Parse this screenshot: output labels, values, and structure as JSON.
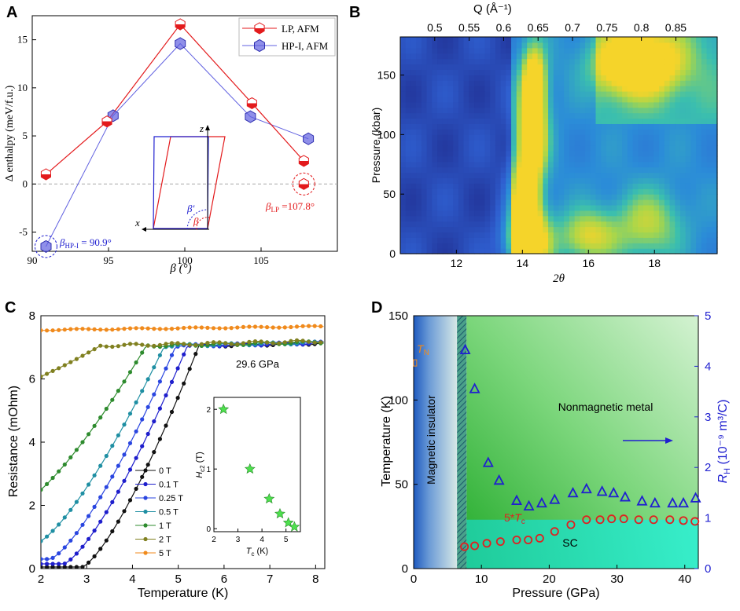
{
  "panels": {
    "A": {
      "label": "A",
      "chart_data": {
        "type": "line",
        "xlabel": "β (°)",
        "ylabel": "Δ enthalpy (meV/f.u.)",
        "xlim": [
          90,
          110
        ],
        "ylim": [
          -7,
          17.5
        ],
        "xticks": [
          90,
          95,
          100,
          105
        ],
        "yticks": [
          -5,
          0,
          5,
          10,
          15
        ],
        "reference_line": 0,
        "series": [
          {
            "name": "LP, AFM",
            "color": "#e31a1c",
            "x": [
              90.9,
              94.9,
              99.7,
              104.4,
              107.8,
              107.8
            ],
            "y": [
              1.0,
              6.5,
              16.6,
              8.4,
              2.4,
              0.0
            ]
          },
          {
            "name": "HP-I, AFM",
            "color": "#6060e0",
            "x": [
              90.9,
              95.3,
              99.7,
              104.3,
              108.1
            ],
            "y": [
              -6.5,
              7.1,
              14.6,
              7.0,
              4.7
            ]
          }
        ],
        "annotations": {
          "hp_beta": "β",
          "hp_sub": "HP-I",
          "hp_val": " = 90.9°",
          "lp_beta": "β",
          "lp_sub": "LP",
          "lp_val": " =107.8°"
        },
        "inset_labels": {
          "z": "z",
          "x": "x",
          "beta_prime": "β′",
          "beta": "β"
        }
      }
    },
    "B": {
      "label": "B",
      "chart_data": {
        "type": "heatmap",
        "xlabel": "2θ",
        "ylabel": "Pressure (kbar)",
        "top_label": "Q (Å⁻¹)",
        "xlim": [
          10.3,
          19.9
        ],
        "ylim": [
          0,
          182
        ],
        "xticks": [
          12,
          14,
          16,
          18
        ],
        "yticks": [
          0,
          50,
          100,
          150
        ],
        "top_xlim": [
          0.45,
          0.91
        ],
        "top_ticks": [
          "0.5",
          "0.55",
          "0.6",
          "0.65",
          "0.7",
          "0.75",
          "0.8",
          "0.85"
        ],
        "top_tick_values": [
          0.5,
          0.55,
          0.6,
          0.65,
          0.7,
          0.75,
          0.8,
          0.85
        ],
        "colormap": [
          "#1f2a8c",
          "#2f5fd0",
          "#2b8cd8",
          "#3bbfae",
          "#a9d64a",
          "#f5d42a"
        ],
        "hot_spots": [
          {
            "x": 14.15,
            "y": 10,
            "sx": 0.45,
            "sy": 18,
            "v": 1.0
          },
          {
            "x": 14.1,
            "y": 45,
            "sx": 0.3,
            "sy": 25,
            "v": 0.9
          },
          {
            "x": 14.3,
            "y": 100,
            "sx": 0.3,
            "sy": 25,
            "v": 0.95
          },
          {
            "x": 14.35,
            "y": 145,
            "sx": 0.25,
            "sy": 20,
            "v": 0.9
          },
          {
            "x": 17.5,
            "y": 160,
            "sx": 0.9,
            "sy": 18,
            "v": 0.95
          },
          {
            "x": 16.0,
            "y": 15,
            "sx": 0.6,
            "sy": 15,
            "v": 0.55
          },
          {
            "x": 17.8,
            "y": 25,
            "sx": 0.7,
            "sy": 20,
            "v": 0.45
          }
        ]
      }
    },
    "C": {
      "label": "C",
      "chart_data": {
        "type": "line",
        "xlabel": "Temperature (K)",
        "ylabel": "Resistance (mOhm)",
        "xlim": [
          2,
          8.2
        ],
        "ylim": [
          0,
          8
        ],
        "xticks": [
          2,
          3,
          4,
          5,
          6,
          7,
          8
        ],
        "yticks": [
          0,
          2,
          4,
          6,
          8
        ],
        "pressure_label": "29.6 GPa",
        "series": [
          {
            "name": "0 T",
            "color": "#111111",
            "tc": 5.45,
            "tstart": 2.9,
            "r0": 0.05
          },
          {
            "name": "0.1 T",
            "color": "#1e1ecc",
            "tc": 5.2,
            "tstart": 2.5,
            "r0": 0.15
          },
          {
            "name": "0.25 T",
            "color": "#2a46e0",
            "tc": 4.95,
            "tstart": 2.2,
            "r0": 0.3
          },
          {
            "name": "0.5 T",
            "color": "#1f8fa3",
            "tc": 4.7,
            "tstart": 1.9,
            "r0": 0.8
          },
          {
            "name": "1 T",
            "color": "#2e8b2e",
            "tc": 4.3,
            "tstart": 1.5,
            "r0": 2.0
          },
          {
            "name": "2 T",
            "color": "#808020",
            "tc": 3.3,
            "tstart": 0.8,
            "r0": 5.5
          },
          {
            "name": "5 T",
            "color": "#f08a1c",
            "tc": 0,
            "tstart": 0,
            "r0": 7.55
          }
        ],
        "normal_resistance": 7.05,
        "inset": {
          "xlabel": "T",
          "xlabel_sub": "c",
          "xlabel_unit": " (K)",
          "ylabel": "H",
          "ylabel_sub": "c2",
          "ylabel_unit": " (T)",
          "xlim": [
            2,
            5.6
          ],
          "ylim": [
            -0.05,
            2.2
          ],
          "xticks": [
            2,
            3,
            4,
            5
          ],
          "yticks": [
            0,
            1,
            2
          ],
          "x": [
            2.4,
            3.5,
            4.3,
            4.75,
            5.1,
            5.35
          ],
          "y": [
            2.0,
            1.0,
            0.5,
            0.25,
            0.1,
            0.03
          ]
        }
      }
    },
    "D": {
      "label": "D",
      "chart_data": {
        "type": "scatter",
        "xlabel": "Pressure (GPa)",
        "ylabel": "Temperature (K)",
        "ylabel_right": "R",
        "ylabel_right_sub": "H",
        "ylabel_right_unit": " (10⁻⁹ m³/C)",
        "xlim": [
          0,
          42
        ],
        "ylim": [
          0,
          150
        ],
        "ylim_right": [
          0,
          5
        ],
        "xticks": [
          0,
          10,
          20,
          30,
          40
        ],
        "yticks": [
          0,
          50,
          100,
          150
        ],
        "yticks_right": [
          0,
          1,
          2,
          3,
          4,
          5
        ],
        "region_labels": {
          "insulator": "Magnetic insulator",
          "metal": "Nonmagnetic metal",
          "sc": "SC",
          "tn": "T",
          "tn_sub": "N",
          "tc": "5*T",
          "tc_sub": "c"
        },
        "tn_point": {
          "x": 0.1,
          "y": 122
        },
        "tc_series": {
          "name": "5*Tc",
          "color": "#e02020",
          "x": [
            7.5,
            9.0,
            10.8,
            12.8,
            15.2,
            16.9,
            18.6,
            20.8,
            23.2,
            25.5,
            27.5,
            29.2,
            31.0,
            33.2,
            35.4,
            37.8,
            39.8,
            41.5
          ],
          "y": [
            13,
            13.5,
            15,
            16,
            17,
            17,
            18,
            22,
            26,
            29,
            29,
            29.5,
            29.5,
            29,
            29,
            29,
            28.5,
            28
          ]
        },
        "rh_series": {
          "name": "RH",
          "color": "#1f1fd0",
          "x": [
            7.6,
            9.0,
            11.0,
            12.6,
            15.2,
            17.0,
            18.9,
            20.8,
            23.5,
            25.5,
            27.8,
            29.5,
            31.2,
            33.7,
            35.6,
            38.2,
            39.8,
            41.6
          ],
          "y": [
            4.33,
            3.56,
            2.1,
            1.75,
            1.35,
            1.24,
            1.3,
            1.37,
            1.5,
            1.58,
            1.53,
            1.5,
            1.42,
            1.34,
            1.3,
            1.3,
            1.3,
            1.4
          ]
        }
      }
    }
  }
}
